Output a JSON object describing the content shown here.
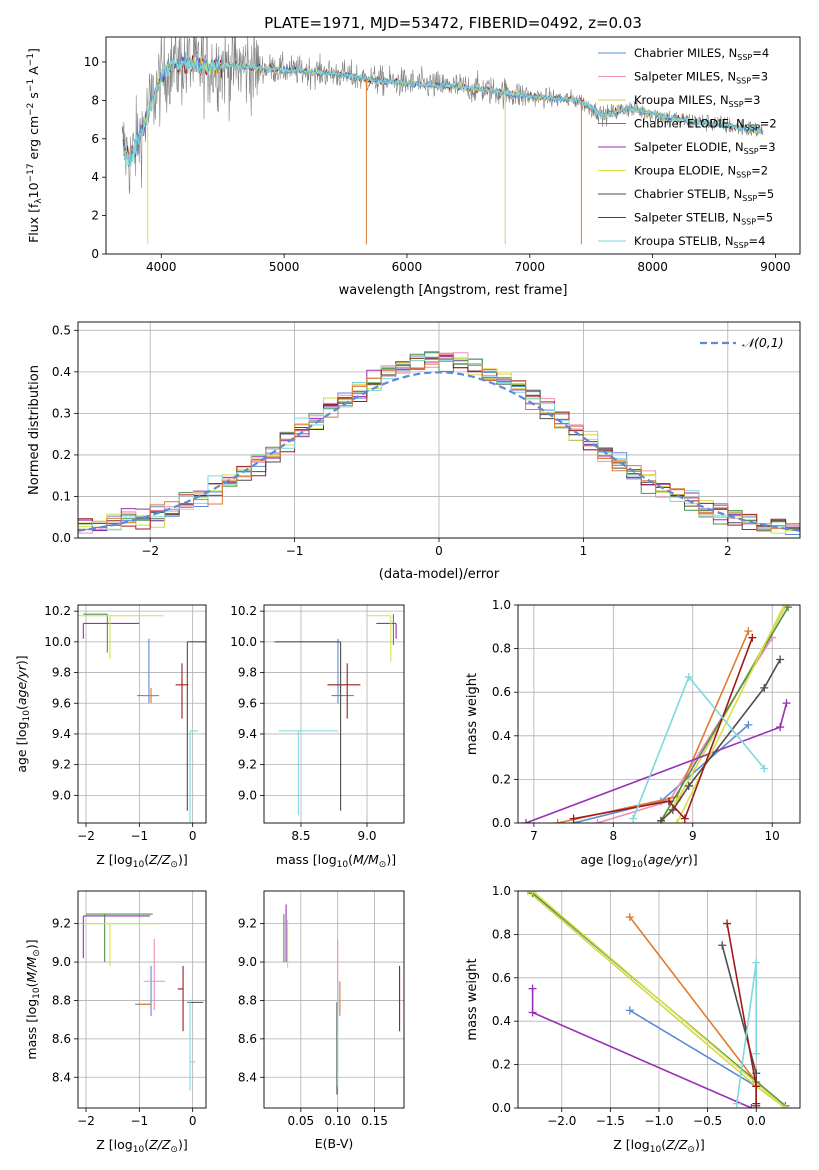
{
  "figure_title": "PLATE=1971, MJD=53472, FIBERID=0492, z=0.03",
  "colors": {
    "chabrier_miles": "#5b8bd6",
    "salpeter_miles": "#f08fb7",
    "kroupa_miles": "#d6d64a",
    "chabrier_elodie": "#4f8f4f",
    "salpeter_elodie": "#9a2fb3",
    "kroupa_elodie": "#d8e04a",
    "chabrier_stelib": "#4d4d4d",
    "salpeter_stelib": "#a11a1a",
    "kroupa_stelib": "#7dd9dd",
    "data": "#808080",
    "orange": "#e07b30",
    "gaussian": "#5b8bd6",
    "grid": "#b0b0b0"
  },
  "chart_data": [
    {
      "id": "spectrum",
      "type": "line",
      "title": "PLATE=1971, MJD=53472, FIBERID=0492, z=0.03",
      "xlabel": "wavelength [Angstrom, rest frame]",
      "ylabel": "Flux [f_λ 10^-17 erg cm^-2 s^-1 A^-1]",
      "xlim": [
        3550,
        9200
      ],
      "ylim": [
        0,
        11.3
      ],
      "xticks": [
        4000,
        5000,
        6000,
        7000,
        8000,
        9000
      ],
      "yticks": [
        0,
        2,
        4,
        6,
        8,
        10
      ],
      "grid": false,
      "legend_position": "top-right",
      "continuum_anchors": {
        "x": [
          3700,
          3750,
          3800,
          3850,
          3900,
          3950,
          4000,
          4050,
          4100,
          4200,
          4400,
          4600,
          5000,
          5400,
          5800,
          6200,
          6600,
          7000,
          7400,
          7600,
          7800,
          8200,
          8500,
          8700,
          8900
        ],
        "y": [
          5.5,
          4.8,
          5.8,
          6.5,
          7.5,
          8.4,
          9.2,
          9.7,
          9.9,
          9.9,
          9.8,
          9.8,
          9.6,
          9.4,
          9.0,
          8.8,
          8.6,
          8.2,
          8.0,
          7.2,
          7.6,
          7.0,
          6.8,
          6.6,
          6.4
        ]
      },
      "series": [
        {
          "name": "Chabrier MILES, N_SSP=4",
          "color_key": "chabrier_miles"
        },
        {
          "name": "Salpeter MILES, N_SSP=3",
          "color_key": "salpeter_miles"
        },
        {
          "name": "Kroupa MILES, N_SSP=3",
          "color_key": "kroupa_miles"
        },
        {
          "name": "Chabrier ELODIE, N_SSP=2",
          "color_key": "chabrier_elodie"
        },
        {
          "name": "Salpeter ELODIE, N_SSP=3",
          "color_key": "salpeter_elodie"
        },
        {
          "name": "Kroupa ELODIE, N_SSP=2",
          "color_key": "kroupa_elodie"
        },
        {
          "name": "Chabrier STELIB, N_SSP=5",
          "color_key": "chabrier_stelib"
        },
        {
          "name": "Salpeter STELIB, N_SSP=5",
          "color_key": "salpeter_stelib"
        },
        {
          "name": "Kroupa STELIB, N_SSP=4",
          "color_key": "kroupa_stelib"
        }
      ]
    },
    {
      "id": "residuals",
      "type": "line",
      "xlabel": "(data-model)/error",
      "ylabel": "Normed distribution",
      "xlim": [
        -2.5,
        2.5
      ],
      "ylim": [
        0,
        0.52
      ],
      "xticks": [
        -2,
        -1,
        0,
        1,
        2
      ],
      "yticks": [
        0.0,
        0.1,
        0.2,
        0.3,
        0.4,
        0.5
      ],
      "grid": true,
      "legend_position": "top-right",
      "legend": "𝒩(0,1)",
      "bin_width": 0.1
    },
    {
      "id": "age_vs_Z",
      "type": "scatter",
      "xlabel": "Z [log10(Z/Z⊙)]",
      "ylabel": "age  [log10(age/yr)]",
      "xlim": [
        -2.15,
        0.25
      ],
      "ylim": [
        8.82,
        10.24
      ],
      "xticks": [
        -2,
        -1,
        0
      ],
      "yticks": [
        9.0,
        9.2,
        9.4,
        9.6,
        9.8,
        10.0,
        10.2
      ],
      "grid": true,
      "points": [
        {
          "x": -0.82,
          "y": 9.65,
          "xerr": [
            0.22,
            0.15
          ],
          "yerr": [
            0.05,
            0.37
          ],
          "color_key": "chabrier_miles"
        },
        {
          "x": -0.78,
          "y": 9.65,
          "xerr": [
            0.15,
            0.15
          ],
          "yerr": [
            0.05,
            0.05
          ],
          "color_key": "orange"
        },
        {
          "x": -0.2,
          "y": 9.72,
          "xerr": [
            0.12,
            0.12
          ],
          "yerr": [
            0.22,
            0.14
          ],
          "color_key": "salpeter_stelib"
        },
        {
          "x": -0.1,
          "y": 10.0,
          "xerr": [
            0.0,
            0.35
          ],
          "yerr": [
            1.1,
            0.0
          ],
          "color_key": "chabrier_stelib"
        },
        {
          "x": -0.05,
          "y": 9.42,
          "xerr": [
            0.0,
            0.15
          ],
          "yerr": [
            0.6,
            0.0
          ],
          "color_key": "kroupa_stelib"
        },
        {
          "x": -1.6,
          "y": 10.18,
          "xerr": [
            0.45,
            0.0
          ],
          "yerr": [
            0.25,
            0.0
          ],
          "color_key": "chabrier_elodie"
        },
        {
          "x": -2.05,
          "y": 10.12,
          "xerr": [
            0.0,
            1.05
          ],
          "yerr": [
            0.1,
            0.0
          ],
          "color_key": "salpeter_elodie"
        },
        {
          "x": -1.55,
          "y": 10.17,
          "xerr": [
            0.6,
            1.0
          ],
          "yerr": [
            0.28,
            0.0
          ],
          "color_key": "kroupa_elodie"
        }
      ]
    },
    {
      "id": "age_vs_mass",
      "type": "scatter",
      "xlabel": "mass [log10(M/M⊙)]",
      "ylabel": "",
      "xlim": [
        8.22,
        9.28
      ],
      "ylim": [
        8.82,
        10.24
      ],
      "xticks": [
        8.5,
        9.0
      ],
      "yticks": [
        9.0,
        9.2,
        9.4,
        9.6,
        9.8,
        10.0,
        10.2
      ],
      "grid": true,
      "points": [
        {
          "x": 8.78,
          "y": 9.65,
          "xerr": [
            0.05,
            0.12
          ],
          "yerr": [
            0.05,
            0.37
          ],
          "color_key": "chabrier_miles"
        },
        {
          "x": 8.85,
          "y": 9.72,
          "xerr": [
            0.15,
            0.1
          ],
          "yerr": [
            0.22,
            0.14
          ],
          "color_key": "salpeter_stelib"
        },
        {
          "x": 8.8,
          "y": 10.0,
          "xerr": [
            0.5,
            0.0
          ],
          "yerr": [
            1.1,
            0.0
          ],
          "color_key": "chabrier_stelib"
        },
        {
          "x": 8.48,
          "y": 9.42,
          "xerr": [
            0.15,
            0.3
          ],
          "yerr": [
            0.55,
            0.0
          ],
          "color_key": "kroupa_stelib"
        },
        {
          "x": 9.22,
          "y": 10.12,
          "xerr": [
            0.15,
            0.0
          ],
          "yerr": [
            0.1,
            0.0
          ],
          "color_key": "salpeter_elodie"
        },
        {
          "x": 9.2,
          "y": 10.18,
          "xerr": [
            0.0,
            0.0
          ],
          "yerr": [
            0.2,
            0.0
          ],
          "color_key": "chabrier_elodie"
        },
        {
          "x": 9.18,
          "y": 10.17,
          "xerr": [
            0.18,
            0.0
          ],
          "yerr": [
            0.3,
            0.0
          ],
          "color_key": "kroupa_elodie"
        }
      ]
    },
    {
      "id": "massweight_vs_age",
      "type": "line",
      "xlabel": "age  [log10(age/yr)]",
      "ylabel": "mass weight",
      "xlim": [
        6.8,
        10.35
      ],
      "ylim": [
        0,
        1.0
      ],
      "xticks": [
        7,
        8,
        9,
        10
      ],
      "yticks": [
        0.0,
        0.2,
        0.4,
        0.6,
        0.8,
        1.0
      ],
      "grid": true,
      "series": [
        {
          "color_key": "chabrier_miles",
          "x": [
            7.5,
            8.6,
            9.7
          ],
          "y": [
            0.0,
            0.1,
            0.45
          ]
        },
        {
          "color_key": "salpeter_miles",
          "x": [
            7.8,
            8.7,
            10.0
          ],
          "y": [
            0.0,
            0.1,
            0.85
          ]
        },
        {
          "color_key": "orange",
          "x": [
            7.3,
            8.8,
            9.7
          ],
          "y": [
            0.0,
            0.12,
            0.88
          ]
        },
        {
          "color_key": "kroupa_miles",
          "x": [
            8.6,
            8.8,
            10.18
          ],
          "y": [
            0.0,
            0.1,
            1.0
          ]
        },
        {
          "color_key": "chabrier_elodie",
          "x": [
            8.6,
            10.2
          ],
          "y": [
            0.01,
            0.99
          ]
        },
        {
          "color_key": "salpeter_elodie",
          "x": [
            6.9,
            10.1,
            10.18
          ],
          "y": [
            0.0,
            0.44,
            0.55
          ]
        },
        {
          "color_key": "kroupa_elodie",
          "x": [
            8.8,
            10.15
          ],
          "y": [
            0.0,
            1.0
          ]
        },
        {
          "color_key": "chabrier_stelib",
          "x": [
            8.6,
            8.75,
            8.95,
            9.9,
            10.1
          ],
          "y": [
            0.01,
            0.06,
            0.17,
            0.62,
            0.75
          ]
        },
        {
          "color_key": "salpeter_stelib",
          "x": [
            7.5,
            8.7,
            8.9,
            9.75
          ],
          "y": [
            0.02,
            0.1,
            0.02,
            0.85
          ]
        },
        {
          "color_key": "kroupa_stelib",
          "x": [
            8.25,
            8.95,
            9.9
          ],
          "y": [
            0.02,
            0.67,
            0.25
          ]
        }
      ]
    },
    {
      "id": "mass_vs_Z",
      "type": "scatter",
      "xlabel": "Z [log10(Z/Z⊙)]",
      "ylabel": "mass [log10(M/M⊙)]",
      "xlim": [
        -2.15,
        0.25
      ],
      "ylim": [
        8.24,
        9.37
      ],
      "xticks": [
        -2,
        -1,
        0
      ],
      "yticks": [
        8.4,
        8.6,
        8.8,
        9.0,
        9.2
      ],
      "grid": true,
      "points": [
        {
          "x": -0.78,
          "y": 8.78,
          "xerr": [
            0.3,
            0.0
          ],
          "yerr": [
            0.06,
            0.2
          ],
          "color_key": "chabrier_miles"
        },
        {
          "x": -0.78,
          "y": 8.78,
          "xerr": [
            0.25,
            0.0
          ],
          "yerr": [
            0.0,
            0.0
          ],
          "color_key": "orange"
        },
        {
          "x": -0.72,
          "y": 8.9,
          "xerr": [
            0.2,
            0.2
          ],
          "yerr": [
            0.15,
            0.22
          ],
          "color_key": "salpeter_miles"
        },
        {
          "x": -0.1,
          "y": 8.79,
          "xerr": [
            0.0,
            0.3
          ],
          "yerr": [
            0.0,
            0.0
          ],
          "color_key": "chabrier_stelib"
        },
        {
          "x": -0.18,
          "y": 8.86,
          "xerr": [
            0.1,
            0.0
          ],
          "yerr": [
            0.22,
            0.12
          ],
          "color_key": "salpeter_stelib"
        },
        {
          "x": -0.05,
          "y": 8.48,
          "xerr": [
            0.0,
            0.1
          ],
          "yerr": [
            0.15,
            0.32
          ],
          "color_key": "kroupa_stelib"
        },
        {
          "x": -2.05,
          "y": 9.24,
          "xerr": [
            0.0,
            1.25
          ],
          "yerr": [
            0.22,
            0.0
          ],
          "color_key": "salpeter_elodie"
        },
        {
          "x": -1.65,
          "y": 9.25,
          "xerr": [
            0.35,
            0.9
          ],
          "yerr": [
            0.25,
            0.0
          ],
          "color_key": "chabrier_elodie"
        },
        {
          "x": -1.55,
          "y": 9.2,
          "xerr": [
            0.5,
            0.9
          ],
          "yerr": [
            0.22,
            0.0
          ],
          "color_key": "kroupa_elodie"
        }
      ]
    },
    {
      "id": "mass_vs_ebv",
      "type": "scatter",
      "xlabel": "E(B-V)",
      "ylabel": "",
      "xlim": [
        0.0,
        0.19
      ],
      "ylim": [
        8.24,
        9.37
      ],
      "xticks": [
        0.05,
        0.1,
        0.15
      ],
      "yticks": [
        8.4,
        8.6,
        8.8,
        9.0,
        9.2
      ],
      "grid": true,
      "points": [
        {
          "x": 0.1,
          "y": 8.78,
          "xerr": [
            0.0,
            0.0
          ],
          "yerr": [
            0.05,
            0.12
          ],
          "color_key": "chabrier_miles"
        },
        {
          "x": 0.103,
          "y": 8.8,
          "xerr": [
            0.0,
            0.0
          ],
          "yerr": [
            0.08,
            0.1
          ],
          "color_key": "orange"
        },
        {
          "x": 0.1,
          "y": 8.9,
          "xerr": [
            0.0,
            0.0
          ],
          "yerr": [
            0.15,
            0.22
          ],
          "color_key": "salpeter_miles"
        },
        {
          "x": 0.184,
          "y": 8.86,
          "xerr": [
            0.0,
            0.0
          ],
          "yerr": [
            0.22,
            0.12
          ],
          "color_key": "salpeter_stelib"
        },
        {
          "x": 0.099,
          "y": 8.79,
          "xerr": [
            0.0,
            0.0
          ],
          "yerr": [
            0.48,
            0.0
          ],
          "color_key": "chabrier_stelib"
        },
        {
          "x": 0.1,
          "y": 8.6,
          "xerr": [
            0.0,
            0.0
          ],
          "yerr": [
            0.25,
            0.3
          ],
          "color_key": "kroupa_stelib"
        },
        {
          "x": 0.03,
          "y": 9.2,
          "xerr": [
            0.0,
            0.0
          ],
          "yerr": [
            0.2,
            0.1
          ],
          "color_key": "salpeter_elodie"
        },
        {
          "x": 0.027,
          "y": 9.15,
          "xerr": [
            0.0,
            0.0
          ],
          "yerr": [
            0.15,
            0.1
          ],
          "color_key": "chabrier_elodie"
        },
        {
          "x": 0.032,
          "y": 9.12,
          "xerr": [
            0.0,
            0.0
          ],
          "yerr": [
            0.15,
            0.1
          ],
          "color_key": "kroupa_elodie"
        }
      ]
    },
    {
      "id": "massweight_vs_Z",
      "type": "line",
      "xlabel": "Z [log10(Z/Z⊙)]",
      "ylabel": "mass weight",
      "xlim": [
        -2.45,
        0.45
      ],
      "ylim": [
        0,
        1.0
      ],
      "xticks": [
        -2.0,
        -1.5,
        -1.0,
        -0.5,
        0.0
      ],
      "yticks": [
        0.0,
        0.2,
        0.4,
        0.6,
        0.8,
        1.0
      ],
      "grid": true,
      "series": [
        {
          "color_key": "chabrier_miles",
          "x": [
            -1.3,
            0.0,
            0.0
          ],
          "y": [
            0.45,
            0.1,
            0.0
          ]
        },
        {
          "color_key": "orange",
          "x": [
            -1.3,
            0.0
          ],
          "y": [
            0.88,
            0.12
          ]
        },
        {
          "color_key": "kroupa_miles",
          "x": [
            -2.35,
            0.0,
            0.3
          ],
          "y": [
            1.0,
            0.1,
            0.0
          ]
        },
        {
          "color_key": "chabrier_elodie",
          "x": [
            -2.3,
            0.3
          ],
          "y": [
            0.99,
            0.01
          ]
        },
        {
          "color_key": "salpeter_elodie",
          "x": [
            -2.3,
            -2.3,
            -0.05
          ],
          "y": [
            0.55,
            0.44,
            0.0
          ]
        },
        {
          "color_key": "kroupa_elodie",
          "x": [
            -2.3,
            0.3
          ],
          "y": [
            1.0,
            0.0
          ]
        },
        {
          "color_key": "chabrier_stelib",
          "x": [
            -0.35,
            0.0,
            0.0
          ],
          "y": [
            0.75,
            0.16,
            0.01
          ]
        },
        {
          "color_key": "salpeter_stelib",
          "x": [
            -0.3,
            0.0,
            0.0
          ],
          "y": [
            0.85,
            0.1,
            0.02
          ]
        },
        {
          "color_key": "kroupa_stelib",
          "x": [
            -0.2,
            0.0,
            0.0
          ],
          "y": [
            0.02,
            0.67,
            0.25
          ]
        }
      ]
    }
  ]
}
